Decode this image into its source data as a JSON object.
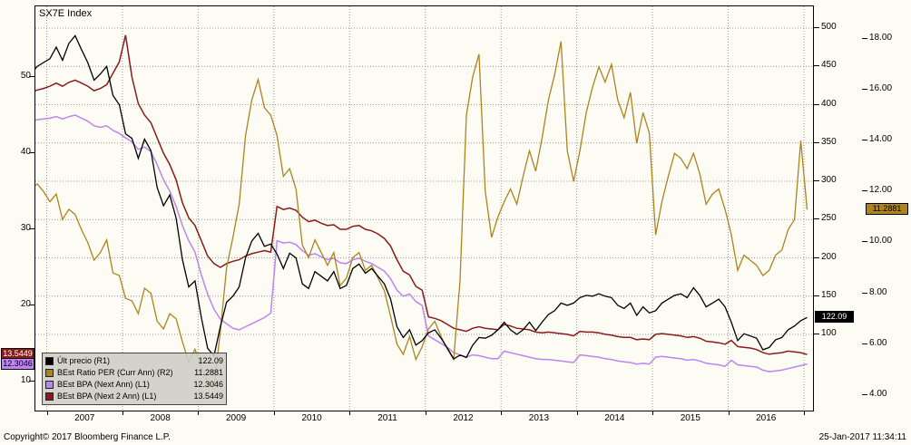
{
  "header": {
    "instrument": "SX7E Index"
  },
  "footer": {
    "copyright": "Copyright© 2017 Bloomberg Finance L.P.",
    "datetime": "25-Jan-2017 11:34:11"
  },
  "colors": {
    "grid": "#999999",
    "border": "#000000",
    "plot_bg": "#fcfcf4"
  },
  "legend": {
    "items": [
      {
        "label": "Últ precio  (R1)",
        "value": "122.09",
        "color": "#000000"
      },
      {
        "label": "BEst Ratio PER (Curr Ann) (R2)",
        "value": "11.2881",
        "color": "#AE831E"
      },
      {
        "label": "BEst BPA (Next Ann) (L1)",
        "value": "12.3046",
        "color": "#BD84F2"
      },
      {
        "label": "BEst BPA (Next 2 Ann) (L1)",
        "value": "13.5449",
        "color": "#8B1B1B"
      }
    ]
  },
  "axis_badges": [
    {
      "text": "13.5449",
      "axis": "left",
      "value": 13.5449,
      "side": "left",
      "bg": "#8B1B1B",
      "fg": "#ffffff"
    },
    {
      "text": "12.3046",
      "axis": "left",
      "value": 12.3046,
      "side": "left",
      "bg": "#BD84F2",
      "fg": "#000000"
    },
    {
      "text": "122.09",
      "axis": "right1",
      "value": 122.09,
      "side": "right1",
      "bg": "#000000",
      "fg": "#ffffff"
    },
    {
      "text": "11.2881",
      "axis": "right2",
      "value": 11.2881,
      "side": "right2",
      "bg": "#AE831E",
      "fg": "#000000"
    }
  ],
  "chart_data": {
    "type": "line",
    "title": "SX7E Index",
    "x_domain": [
      2006.85,
      2017.12
    ],
    "year_lines": [
      2007,
      2008,
      2009,
      2010,
      2011,
      2012,
      2013,
      2014,
      2015,
      2016,
      2017
    ],
    "x_ticks": [
      {
        "v": 2007,
        "label": "2007"
      },
      {
        "v": 2008,
        "label": "2008"
      },
      {
        "v": 2009,
        "label": "2009"
      },
      {
        "v": 2010,
        "label": "2010"
      },
      {
        "v": 2011,
        "label": "2011"
      },
      {
        "v": 2012,
        "label": "2012"
      },
      {
        "v": 2013,
        "label": "2013"
      },
      {
        "v": 2014,
        "label": "2014"
      },
      {
        "v": 2015,
        "label": "2015"
      },
      {
        "v": 2016,
        "label": "2016"
      }
    ],
    "axes": {
      "left": {
        "domain": [
          6.19,
          59.29
        ],
        "ticks": [
          10,
          20,
          30,
          40,
          50
        ],
        "labels": [
          "10",
          "20",
          "30",
          "40",
          "50"
        ]
      },
      "right1": {
        "domain": [
          0.6,
          528.4
        ],
        "ticks": [
          100,
          150,
          200,
          250,
          300,
          350,
          400,
          450,
          500
        ],
        "labels": [
          "100",
          "150",
          "200",
          "250",
          "300",
          "350",
          "400",
          "450",
          "500"
        ]
      },
      "right2": {
        "domain": [
          3.39,
          19.28
        ],
        "ticks": [
          4,
          6,
          8,
          10,
          12,
          14,
          16,
          18
        ],
        "labels": [
          "4.00",
          "6.00",
          "8.00",
          "10.00",
          "12.00",
          "14.00",
          "16.00",
          "18.00"
        ]
      }
    },
    "grid": {
      "horizontal_on": "right1",
      "vertical_on": "years",
      "style": "dotted"
    },
    "series": [
      {
        "id": "best-bpa-next-ann",
        "name": "BEst BPA (Next Ann)",
        "axis": "left",
        "color": "#BD84F2",
        "width": 1.5,
        "last_label": "12.3046",
        "start": 2006.7917,
        "step": 0.0833333,
        "values": [
          44.2,
          44.4,
          44.5,
          44.6,
          44.8,
          44.5,
          44.8,
          45.0,
          44.6,
          44.2,
          43.6,
          43.4,
          43.6,
          43.0,
          42.6,
          42.0,
          41.5,
          40.5,
          40.8,
          40.2,
          38.5,
          36.5,
          35.0,
          33.0,
          30.5,
          28.5,
          27.0,
          24.0,
          21.5,
          19.5,
          18.2,
          17.6,
          17.0,
          16.8,
          17.2,
          17.6,
          18.0,
          18.4,
          19.0,
          28.5,
          28.2,
          28.3,
          28.0,
          27.2,
          26.6,
          26.8,
          26.4,
          26.0,
          26.2,
          25.6,
          25.5,
          26.0,
          26.2,
          25.8,
          25.5,
          25.0,
          24.5,
          23.5,
          22.0,
          21.2,
          21.5,
          20.5,
          20.0,
          16.0,
          15.5,
          15.0,
          14.5,
          13.8,
          13.5,
          13.2,
          13.5,
          13.4,
          13.2,
          13.0,
          13.0,
          14.0,
          13.8,
          13.6,
          13.4,
          13.2,
          13.0,
          12.9,
          12.9,
          12.8,
          12.7,
          12.6,
          12.5,
          13.5,
          13.4,
          13.3,
          13.2,
          13.0,
          12.9,
          12.7,
          12.6,
          12.5,
          12.3,
          12.4,
          12.3,
          13.2,
          13.3,
          13.2,
          13.1,
          13.0,
          12.8,
          12.9,
          12.7,
          12.4,
          12.3,
          12.2,
          12.0,
          12.8,
          12.2,
          12.1,
          12.0,
          11.9,
          11.5,
          11.3,
          11.4,
          11.5,
          11.7,
          11.9,
          12.1,
          12.3046
        ]
      },
      {
        "id": "best-bpa-next-2-ann",
        "name": "BEst BPA (Next 2 Ann)",
        "axis": "left",
        "color": "#8B1B1B",
        "width": 1.5,
        "last_label": "13.5449",
        "start": 2006.7917,
        "step": 0.0833333,
        "values": [
          48.0,
          48.3,
          48.5,
          48.8,
          49.2,
          48.8,
          49.3,
          49.6,
          49.2,
          48.8,
          48.2,
          48.5,
          49.0,
          50.5,
          52.0,
          55.5,
          50.0,
          46.5,
          45.0,
          44.0,
          42.0,
          40.0,
          38.5,
          36.5,
          33.5,
          31.5,
          30.5,
          28.5,
          26.5,
          25.5,
          25.0,
          25.5,
          25.8,
          26.0,
          26.5,
          26.8,
          27.0,
          27.2,
          27.0,
          33.0,
          32.6,
          32.8,
          32.5,
          31.6,
          31.0,
          31.2,
          30.8,
          30.5,
          30.6,
          30.0,
          30.0,
          30.4,
          30.5,
          30.0,
          29.8,
          29.4,
          28.8,
          27.8,
          26.0,
          24.5,
          24.0,
          22.5,
          22.0,
          18.5,
          18.3,
          18.0,
          17.5,
          17.0,
          16.8,
          16.6,
          17.0,
          17.2,
          17.0,
          16.9,
          16.8,
          17.5,
          17.3,
          17.0,
          16.9,
          16.8,
          16.5,
          16.4,
          16.5,
          16.4,
          16.3,
          16.2,
          16.0,
          16.6,
          16.5,
          16.5,
          16.4,
          16.2,
          16.1,
          15.9,
          15.8,
          15.8,
          15.5,
          15.6,
          15.5,
          16.2,
          16.3,
          16.2,
          16.1,
          16.0,
          15.8,
          15.9,
          15.7,
          15.3,
          15.2,
          15.1,
          14.9,
          15.4,
          14.6,
          14.5,
          14.4,
          14.2,
          13.8,
          13.6,
          13.7,
          13.8,
          14.0,
          13.9,
          13.8,
          13.5449
        ]
      },
      {
        "id": "best-ratio-per",
        "name": "BEst Ratio PER (Curr Ann)",
        "axis": "right2",
        "color": "#AE831E",
        "width": 1.3,
        "last_label": "11.2881",
        "start": 2006.7917,
        "step": 0.0833333,
        "values": [
          12.1,
          12.3,
          12.0,
          11.6,
          11.9,
          10.9,
          11.3,
          11.1,
          10.5,
          10.0,
          9.3,
          9.6,
          10.1,
          8.8,
          8.7,
          7.8,
          7.7,
          7.2,
          8.2,
          8.0,
          6.9,
          6.6,
          7.2,
          7.0,
          6.1,
          5.3,
          5.8,
          5.1,
          4.5,
          4.3,
          6.5,
          9.0,
          10.2,
          11.5,
          14.2,
          15.6,
          16.4,
          15.3,
          15.0,
          14.2,
          12.6,
          12.9,
          12.1,
          9.9,
          9.4,
          10.1,
          9.6,
          9.1,
          9.6,
          8.3,
          8.6,
          9.4,
          9.6,
          8.9,
          9.1,
          8.6,
          8.1,
          7.1,
          6.0,
          5.6,
          6.3,
          5.4,
          5.9,
          6.6,
          6.9,
          6.3,
          5.8,
          5.4,
          8.5,
          15.0,
          16.5,
          17.4,
          12.0,
          10.2,
          11.0,
          11.6,
          12.1,
          11.5,
          12.6,
          13.6,
          12.8,
          14.1,
          15.6,
          16.6,
          17.9,
          13.6,
          12.4,
          13.6,
          15.1,
          16.1,
          16.9,
          16.3,
          17.0,
          15.6,
          14.9,
          15.9,
          13.9,
          15.1,
          14.3,
          10.3,
          11.6,
          12.6,
          13.5,
          13.3,
          12.9,
          13.5,
          12.7,
          11.5,
          11.9,
          12.1,
          11.3,
          10.3,
          8.9,
          9.5,
          9.3,
          9.1,
          8.7,
          8.9,
          9.5,
          9.7,
          10.5,
          10.9,
          14.0,
          11.2881
        ]
      },
      {
        "id": "ult-precio",
        "name": "Últ precio",
        "axis": "right1",
        "color": "#000000",
        "width": 1.3,
        "last_label": "122.09",
        "start": 2006.7917,
        "step": 0.0833333,
        "values": [
          440,
          450,
          455,
          460,
          475,
          458,
          480,
          490,
          472,
          455,
          432,
          440,
          450,
          412,
          400,
          362,
          356,
          330,
          355,
          340,
          292,
          268,
          282,
          252,
          198,
          162,
          170,
          122,
          82,
          72,
          110,
          142,
          150,
          162,
          200,
          222,
          232,
          215,
          218,
          205,
          186,
          206,
          200,
          166,
          160,
          182,
          176,
          170,
          182,
          160,
          164,
          186,
          192,
          180,
          186,
          176,
          166,
          146,
          110,
          96,
          106,
          86,
          92,
          102,
          106,
          95,
          82,
          68,
          73,
          70,
          86,
          96,
          95,
          99,
          106,
          116,
          106,
          100,
          106,
          116,
          105,
          116,
          126,
          131,
          141,
          138,
          141,
          148,
          151,
          150,
          153,
          150,
          148,
          138,
          134,
          141,
          125,
          136,
          128,
          131,
          141,
          146,
          151,
          153,
          148,
          161,
          151,
          136,
          141,
          146,
          136,
          116,
          92,
          101,
          98,
          95,
          80,
          83,
          93,
          96,
          106,
          111,
          118,
          122.09
        ]
      }
    ]
  }
}
